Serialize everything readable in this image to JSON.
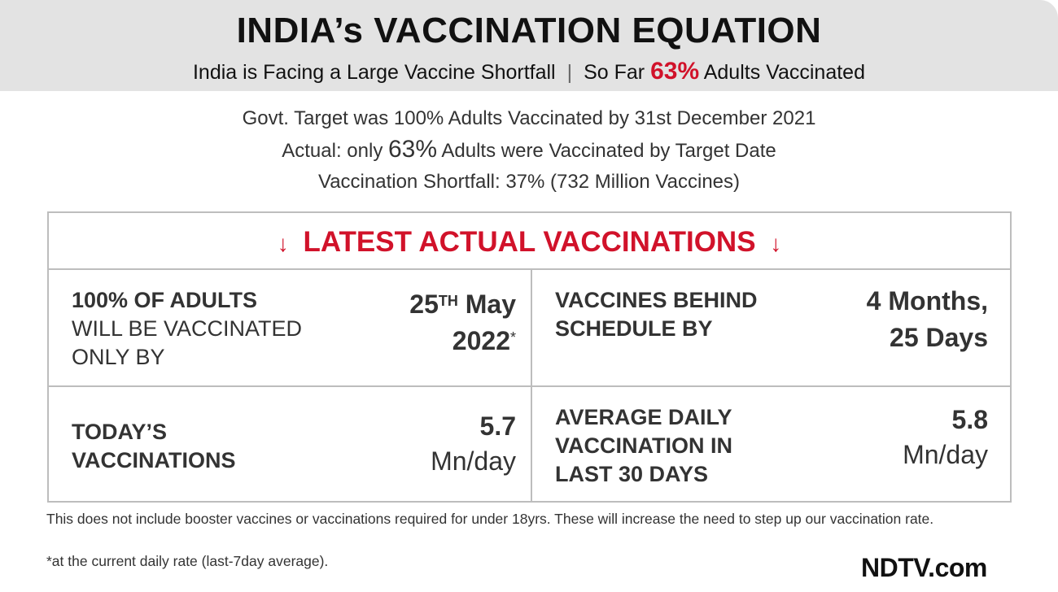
{
  "header": {
    "title": "INDIA’s VACCINATION EQUATION",
    "subtitle_left": "India is Facing a Large Vaccine Shortfall",
    "separator": "|",
    "subtitle_right_pre": "So Far",
    "subtitle_right_pct": "63%",
    "subtitle_right_post": "Adults Vaccinated"
  },
  "summary": {
    "line1": "Govt. Target was 100% Adults Vaccinated by 31st December 2021",
    "line2_pre": "Actual: only",
    "line2_pct": "63%",
    "line2_post": "Adults were Vaccinated by Target Date",
    "line3": "Vaccination Shortfall: 37% (732 Million Vaccines)"
  },
  "panel": {
    "arrow": "↓",
    "heading": "LATEST ACTUAL VACCINATIONS",
    "cells": [
      {
        "label_bold": "100% OF ADULTS",
        "label_rest_1": "WILL BE VACCINATED",
        "label_rest_2": "ONLY BY",
        "value_day": "25",
        "value_sup": "TH",
        "value_month": "May",
        "value_year": "2022",
        "value_mark": "*"
      },
      {
        "label_1": "VACCINES BEHIND",
        "label_2": "SCHEDULE BY",
        "value_1": "4 Months,",
        "value_2": "25 Days"
      },
      {
        "label_1": "TODAY’S",
        "label_2": "VACCINATIONS",
        "value": "5.7",
        "unit": "Mn/day"
      },
      {
        "label_1": "AVERAGE DAILY",
        "label_2": "VACCINATION IN",
        "label_3": "LAST 30 DAYS",
        "value": "5.8",
        "unit": "Mn/day"
      }
    ]
  },
  "footnotes": {
    "note1": "This does not include booster vaccines or vaccinations required for under 18yrs. These will increase the need to step up our vaccination rate.",
    "note2": "*at the current daily rate (last-7day average)."
  },
  "brand": {
    "logo_text": "NDTV.com"
  }
}
